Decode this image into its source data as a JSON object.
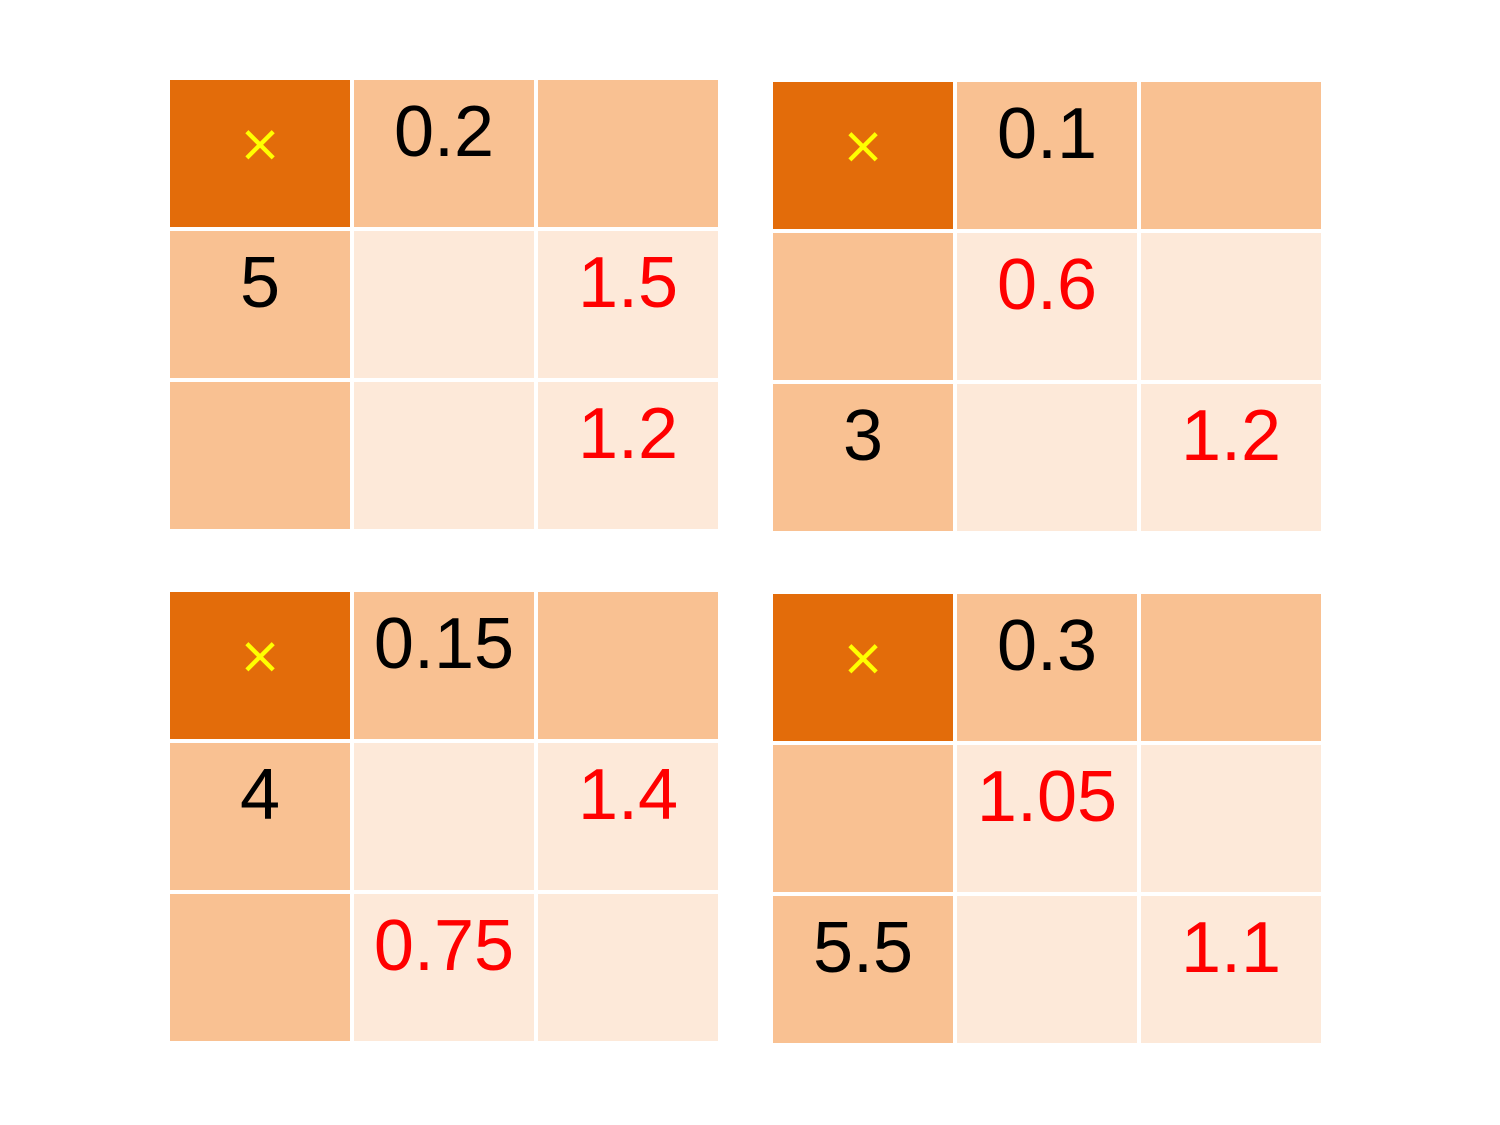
{
  "symbol": "×",
  "tables": [
    {
      "col_headers": [
        "0.2",
        ""
      ],
      "row_headers": [
        "5",
        ""
      ],
      "cells": [
        [
          "",
          "1.5"
        ],
        [
          "",
          "1.2"
        ]
      ]
    },
    {
      "col_headers": [
        "0.1",
        ""
      ],
      "row_headers": [
        "",
        "3"
      ],
      "cells": [
        [
          "0.6",
          ""
        ],
        [
          "",
          "1.2"
        ]
      ]
    },
    {
      "col_headers": [
        "0.15",
        ""
      ],
      "row_headers": [
        "4",
        ""
      ],
      "cells": [
        [
          "",
          "1.4"
        ],
        [
          "0.75",
          ""
        ]
      ]
    },
    {
      "col_headers": [
        "0.3",
        ""
      ],
      "row_headers": [
        "",
        "5.5"
      ],
      "cells": [
        [
          "1.05",
          ""
        ],
        [
          "",
          "1.1"
        ]
      ]
    }
  ]
}
